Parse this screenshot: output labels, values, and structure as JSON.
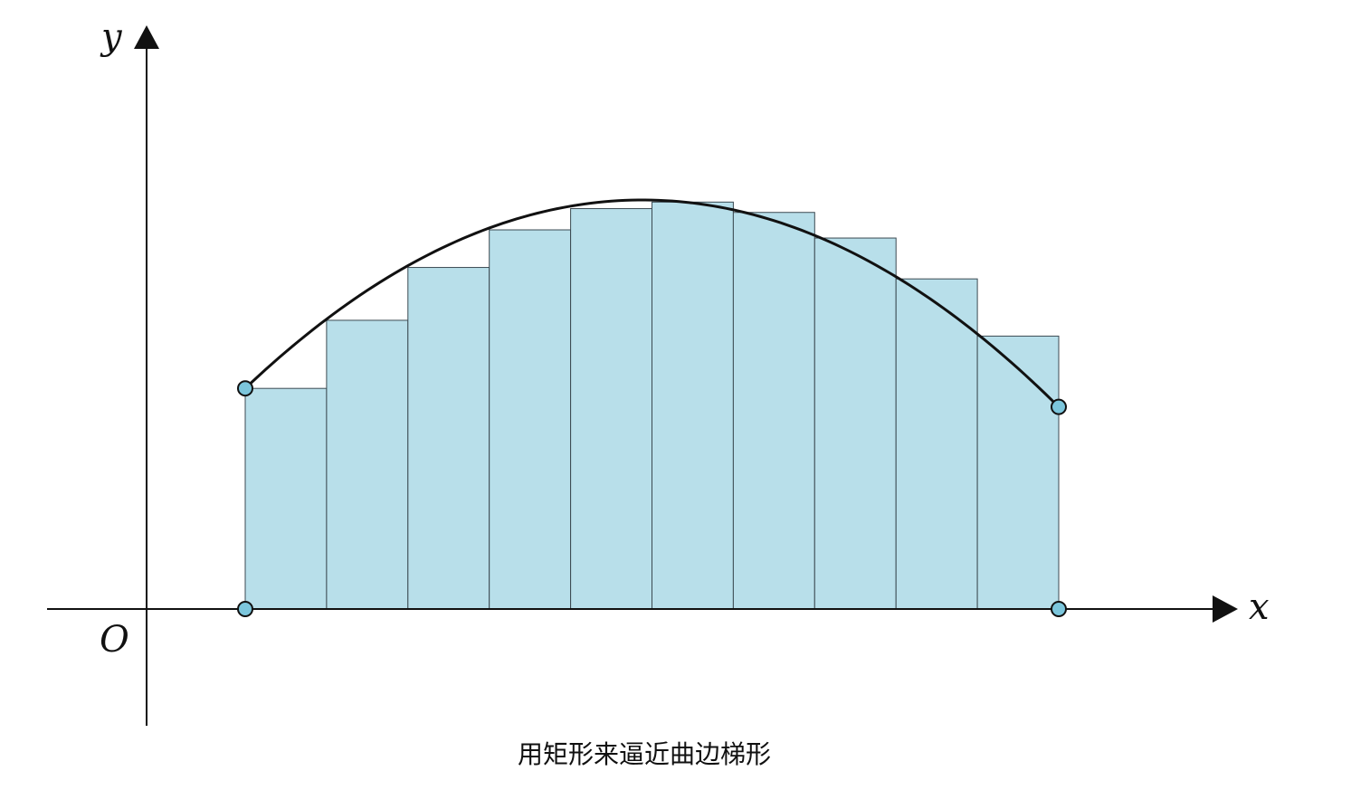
{
  "diagram": {
    "y_axis_label": "y",
    "x_axis_label": "x",
    "origin_label": "O",
    "caption": "用矩形来逼近曲边梯形",
    "rectangle_count": 10,
    "rectangle_heights": [
      4.05,
      5.3,
      6.27,
      6.96,
      7.35,
      7.47,
      7.28,
      6.81,
      6.06,
      5.01
    ],
    "curve_endpoints": {
      "left": 4.05,
      "right": 3.71
    },
    "colors": {
      "rect_fill": "#b8dfea",
      "rect_stroke": "#3b4a52",
      "curve": "#111111",
      "point_fill": "#7cc6dc",
      "axis": "#111111"
    }
  }
}
